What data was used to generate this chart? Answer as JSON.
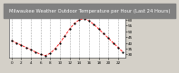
{
  "title": "Milwaukee Weather Outdoor Temperature per Hour (Last 24 Hours)",
  "hours": [
    0,
    1,
    2,
    3,
    4,
    5,
    6,
    7,
    8,
    9,
    10,
    11,
    12,
    13,
    14,
    15,
    16,
    17,
    18,
    19,
    20,
    21,
    22,
    23
  ],
  "temps": [
    42,
    40,
    38,
    36,
    34,
    32,
    30,
    29,
    31,
    35,
    40,
    46,
    52,
    57,
    60,
    61,
    59,
    56,
    52,
    48,
    44,
    40,
    36,
    32
  ],
  "line_color": "#ff0000",
  "marker_color": "#000000",
  "bg_color": "#d4d0c8",
  "plot_bg": "#ffffff",
  "title_bg": "#808080",
  "title_fg": "#ffffff",
  "grid_color": "#808080",
  "ylim": [
    27,
    65
  ],
  "yticks": [
    30,
    35,
    40,
    45,
    50,
    55,
    60
  ],
  "xlim": [
    -0.5,
    23.5
  ],
  "xtick_step": 2,
  "title_fontsize": 3.8,
  "tick_fontsize": 3.0
}
